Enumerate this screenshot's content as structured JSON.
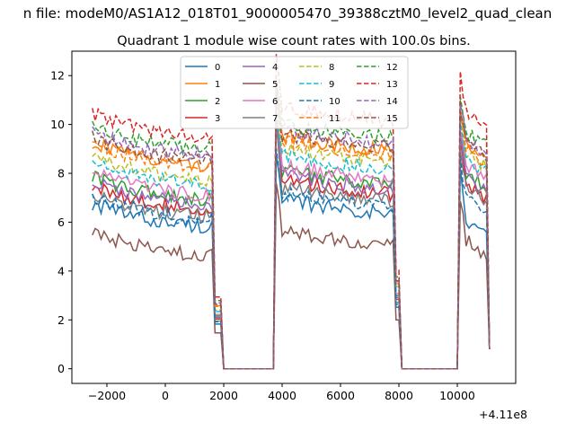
{
  "suptitle": "n file: modeM0/AS1A12_018T01_9000005470_39388cztM0_level2_quad_clean",
  "chart_data": {
    "type": "line",
    "title": "Quadrant 1 module wise count rates with 100.0s bins.",
    "xlabel": "",
    "ylabel": "",
    "x_offset_label": "+4.11e8",
    "x_offset": 411000000,
    "xlim": [
      -3200,
      12000
    ],
    "ylim": [
      -0.6,
      13.0
    ],
    "x_ticks": [
      -2000,
      0,
      2000,
      4000,
      6000,
      8000,
      10000
    ],
    "x_tick_labels": [
      "−2000",
      "0",
      "2000",
      "4000",
      "6000",
      "8000",
      "10000"
    ],
    "y_ticks": [
      0,
      2,
      4,
      6,
      8,
      10,
      12
    ],
    "y_tick_labels": [
      "0",
      "2",
      "4",
      "6",
      "8",
      "10",
      "12"
    ],
    "legend_position": "top-center",
    "legend_columns": 4,
    "segments": [
      {
        "x_start": -2500,
        "x_end": 1700
      },
      {
        "x_start": 3800,
        "x_end": 7900
      },
      {
        "x_start": 10100,
        "x_end": 11100
      }
    ],
    "series": [
      {
        "name": "0",
        "color": "#1f77b4",
        "dash": "solid",
        "levels": [
          6.1,
          6.3,
          6.2
        ],
        "peak": 8.0
      },
      {
        "name": "1",
        "color": "#ff7f0e",
        "dash": "solid",
        "levels": [
          8.6,
          8.9,
          9.4
        ],
        "peak": 10.6
      },
      {
        "name": "2",
        "color": "#2ca02c",
        "dash": "solid",
        "levels": [
          7.2,
          7.5,
          8.2
        ],
        "peak": 9.6
      },
      {
        "name": "3",
        "color": "#d62728",
        "dash": "solid",
        "levels": [
          6.8,
          7.1,
          7.7
        ],
        "peak": 9.4
      },
      {
        "name": "4",
        "color": "#9467bd",
        "dash": "solid",
        "levels": [
          7.0,
          7.3,
          8.0
        ],
        "peak": 9.8
      },
      {
        "name": "5",
        "color": "#8c564b",
        "dash": "solid",
        "levels": [
          4.9,
          5.0,
          5.4
        ],
        "peak": 7.0
      },
      {
        "name": "6",
        "color": "#e377c2",
        "dash": "solid",
        "levels": [
          7.4,
          7.7,
          8.5
        ],
        "peak": 10.0
      },
      {
        "name": "7",
        "color": "#7f7f7f",
        "dash": "solid",
        "levels": [
          6.5,
          6.8,
          7.6
        ],
        "peak": 9.2
      },
      {
        "name": "8",
        "color": "#bcbd22",
        "dash": "dashed",
        "levels": [
          8.0,
          8.4,
          9.0
        ],
        "peak": 10.2
      },
      {
        "name": "9",
        "color": "#17becf",
        "dash": "dashed",
        "levels": [
          7.8,
          8.1,
          8.8
        ],
        "peak": 10.0
      },
      {
        "name": "10",
        "color": "#1f77b4",
        "dash": "dashed",
        "levels": [
          6.4,
          6.6,
          7.1
        ],
        "peak": 8.6
      },
      {
        "name": "11",
        "color": "#ff7f0e",
        "dash": "dashed",
        "levels": [
          8.5,
          8.7,
          9.2
        ],
        "peak": 10.4
      },
      {
        "name": "12",
        "color": "#2ca02c",
        "dash": "dashed",
        "levels": [
          9.3,
          9.4,
          9.8
        ],
        "peak": 11.2
      },
      {
        "name": "13",
        "color": "#d62728",
        "dash": "dashed",
        "levels": [
          9.8,
          10.1,
          10.6
        ],
        "peak": 12.3
      },
      {
        "name": "14",
        "color": "#9467bd",
        "dash": "dashed",
        "levels": [
          9.0,
          9.2,
          9.6
        ],
        "peak": 11.0
      },
      {
        "name": "15",
        "color": "#8c564b",
        "dash": "dashed",
        "levels": [
          8.8,
          9.0,
          9.5
        ],
        "peak": 10.8
      }
    ]
  }
}
